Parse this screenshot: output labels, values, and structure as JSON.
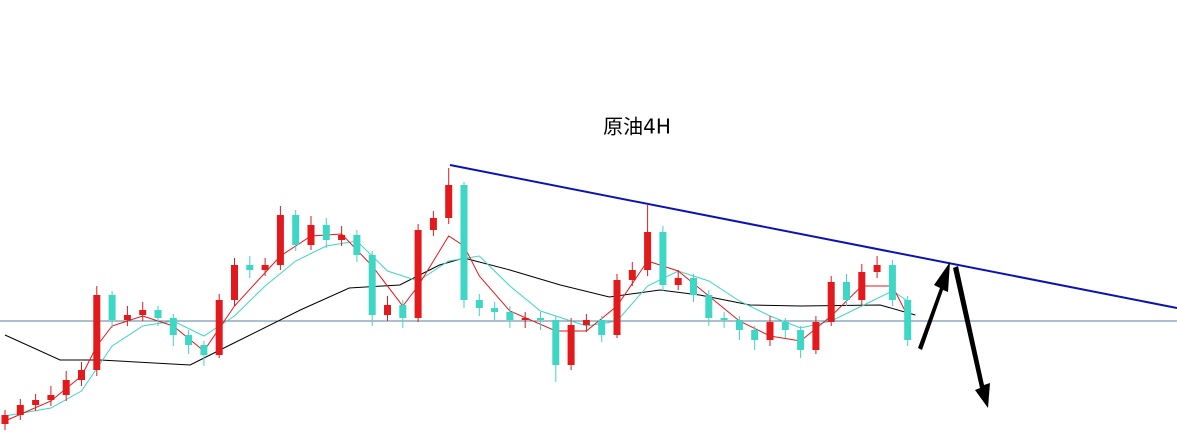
{
  "chart_data": {
    "type": "candlestick",
    "title": "原油4H",
    "ylim": [
      0,
      446
    ],
    "up_color": "#e31a1c",
    "down_color": "#3ed6c4",
    "open": [
      22,
      31,
      41,
      46,
      51,
      66,
      76,
      151,
      126,
      131,
      136,
      128,
      111,
      101,
      91,
      146,
      181,
      176,
      181,
      231,
      201,
      221,
      206,
      211,
      191,
      131,
      141,
      128,
      216,
      228,
      261,
      146,
      138,
      134,
      126,
      128,
      126,
      81,
      121,
      126,
      111,
      166,
      176,
      214,
      161,
      168,
      151,
      128,
      126,
      116,
      106,
      124,
      116,
      96,
      124,
      164,
      146,
      174,
      181,
      146
    ],
    "high": [
      36,
      47,
      52,
      60,
      75,
      84,
      160,
      155,
      140,
      144,
      140,
      132,
      116,
      105,
      152,
      188,
      190,
      188,
      240,
      236,
      230,
      228,
      220,
      216,
      195,
      150,
      146,
      222,
      235,
      278,
      264,
      152,
      144,
      140,
      134,
      134,
      130,
      128,
      132,
      130,
      172,
      184,
      242,
      220,
      176,
      172,
      156,
      134,
      130,
      120,
      130,
      128,
      120,
      130,
      170,
      172,
      182,
      190,
      186,
      150
    ],
    "low": [
      16,
      26,
      35,
      40,
      45,
      60,
      70,
      118,
      120,
      125,
      120,
      100,
      92,
      80,
      88,
      140,
      168,
      170,
      176,
      195,
      196,
      198,
      200,
      184,
      120,
      125,
      118,
      124,
      210,
      222,
      138,
      130,
      126,
      118,
      118,
      116,
      64,
      76,
      114,
      104,
      108,
      160,
      170,
      155,
      156,
      144,
      120,
      118,
      106,
      96,
      100,
      108,
      88,
      92,
      120,
      140,
      140,
      168,
      140,
      100
    ],
    "close": [
      31,
      41,
      46,
      51,
      66,
      76,
      151,
      126,
      131,
      136,
      128,
      111,
      101,
      91,
      146,
      181,
      176,
      181,
      231,
      201,
      221,
      206,
      211,
      191,
      131,
      141,
      128,
      216,
      228,
      261,
      146,
      138,
      134,
      126,
      128,
      126,
      81,
      121,
      126,
      111,
      166,
      176,
      214,
      161,
      168,
      151,
      128,
      126,
      116,
      106,
      124,
      116,
      96,
      124,
      164,
      146,
      174,
      181,
      146,
      106
    ],
    "overlays": [
      {
        "color": "#000000",
        "x": [
          0,
          3.6,
          6.2,
          12.1,
          14.7,
          19.3,
          22.5,
          25.8,
          28.4,
          30,
          33,
          36.3,
          39.5,
          42.8,
          45.4,
          48.7,
          52,
          57.2,
          59.5
        ],
        "values": [
          111,
          86,
          86,
          81,
          101,
          136,
          158,
          161,
          181,
          188,
          176,
          161,
          149,
          156,
          151,
          141,
          140,
          141,
          131
        ]
      },
      {
        "color": "#3ed6c4",
        "x": [
          0,
          3,
          5,
          7,
          9,
          11,
          13,
          15,
          17,
          19,
          21,
          23,
          25,
          27,
          29,
          31,
          33,
          35,
          38,
          40,
          42,
          44,
          46,
          48,
          50,
          52,
          54,
          56,
          58,
          59
        ],
        "values": [
          30,
          38,
          55,
          100,
          120,
          125,
          110,
          130,
          160,
          185,
          200,
          205,
          175,
          165,
          185,
          190,
          160,
          135,
          120,
          125,
          160,
          175,
          165,
          145,
          130,
          118,
          125,
          140,
          155,
          145
        ]
      },
      {
        "color": "#e31a1c",
        "x": [
          0,
          3,
          5,
          6,
          7,
          9,
          11,
          13,
          15,
          18,
          20,
          22,
          24,
          26,
          27,
          29,
          30,
          31,
          33,
          36,
          38,
          40,
          42,
          44,
          46,
          48,
          50,
          52,
          54,
          56,
          58,
          59
        ],
        "values": [
          25,
          45,
          70,
          100,
          120,
          130,
          120,
          95,
          140,
          190,
          210,
          212,
          180,
          140,
          160,
          210,
          200,
          170,
          135,
          115,
          115,
          140,
          185,
          175,
          150,
          125,
          110,
          105,
          130,
          160,
          160,
          130
        ]
      }
    ]
  }
}
